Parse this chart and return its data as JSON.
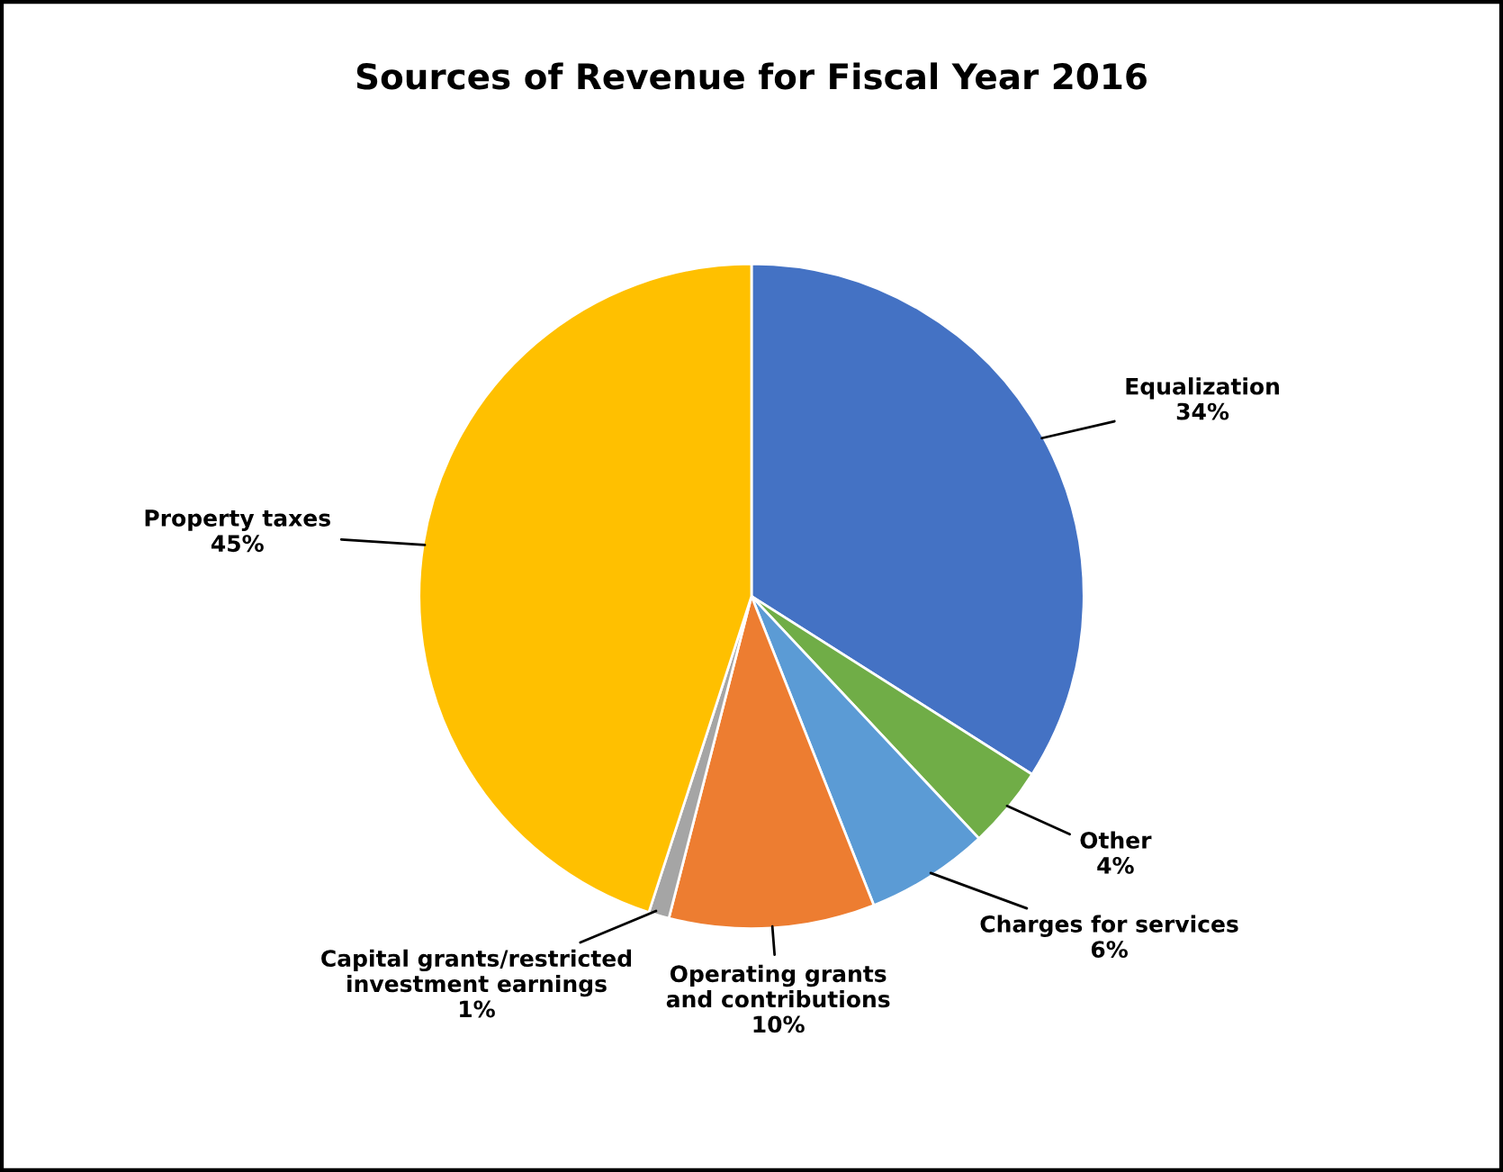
{
  "chart_data": {
    "type": "pie",
    "title": "Sources of Revenue for Fiscal Year 2016",
    "categories": [
      "Equalization",
      "Other",
      "Charges for services",
      "Operating grants and contributions",
      "Capital grants/restricted investment earnings",
      "Property taxes"
    ],
    "values": [
      34,
      4,
      6,
      10,
      1,
      45
    ],
    "value_labels": [
      "34%",
      "4%",
      "6%",
      "10%",
      "1%",
      "45%"
    ],
    "colors": [
      "#4472c4",
      "#70ad47",
      "#5b9bd5",
      "#ed7d31",
      "#a5a5a5",
      "#ffc000"
    ],
    "legend": false
  }
}
